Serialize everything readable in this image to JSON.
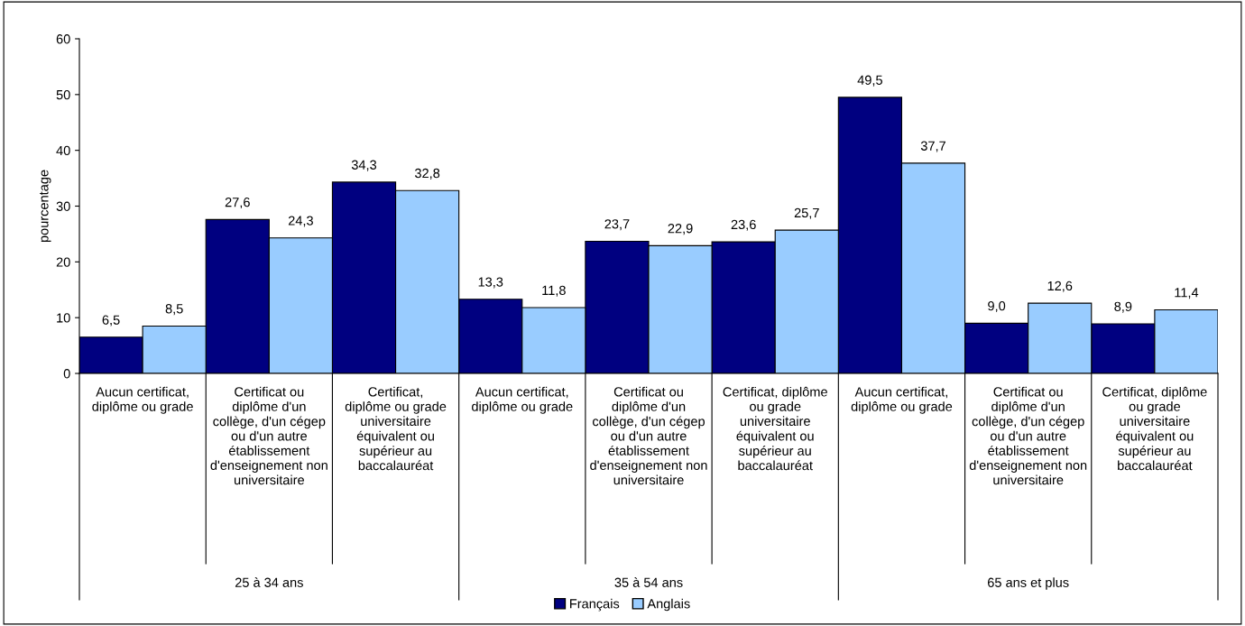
{
  "chart_data": {
    "type": "bar",
    "ylabel": "pourcentage",
    "categories": [
      "Aucun certificat,\ndiplôme ou grade",
      "Certificat ou\ndiplôme d'un\ncollège, d'un cégep\nou d'un autre\nétablissement\nd'enseignement non\nuniversitaire",
      "Certificat,\ndiplôme ou grade\nuniversitaire\néquivalent ou\nsupérieur au\nbaccalauréat",
      "Aucun certificat,\ndiplôme ou grade",
      "Certificat ou\ndiplôme d'un\ncollège, d'un cégep\nou d'un autre\nétablissement\nd'enseignement non\nuniversitaire",
      "Certificat, diplôme\nou grade\nuniversitaire\néquivalent ou\nsupérieur au\nbaccalauréat",
      "Aucun certificat,\ndiplôme ou grade",
      "Certificat ou\ndiplôme d'un\ncollège, d'un cégep\nou d'un autre\nétablissement\nd'enseignement non\nuniversitaire",
      "Certificat, diplôme\nou grade\nuniversitaire\néquivalent ou\nsupérieur au\nbaccalauréat"
    ],
    "series": [
      {
        "name": "Français",
        "color": "#000080",
        "values": [
          6.5,
          27.6,
          34.3,
          13.3,
          23.7,
          23.6,
          49.5,
          9.0,
          8.9
        ],
        "value_labels": [
          "6,5",
          "27,6",
          "34,3",
          "13,3",
          "23,7",
          "23,6",
          "49,5",
          "9,0",
          "8,9"
        ]
      },
      {
        "name": "Anglais",
        "color": "#99ccff",
        "values": [
          8.5,
          24.3,
          32.8,
          11.8,
          22.9,
          25.7,
          37.7,
          12.6,
          11.4
        ],
        "value_labels": [
          "8,5",
          "24,3",
          "32,8",
          "11,8",
          "22,9",
          "25,7",
          "37,7",
          "12,6",
          "11,4"
        ]
      }
    ],
    "annotations": [
      "25 à 34 ans",
      "35 à 54 ans",
      "65 ans et plus"
    ],
    "ylim": [
      0,
      60
    ],
    "yticks": [
      0,
      10,
      20,
      30,
      40,
      50,
      60
    ],
    "grid": false,
    "legend": "bottom"
  }
}
